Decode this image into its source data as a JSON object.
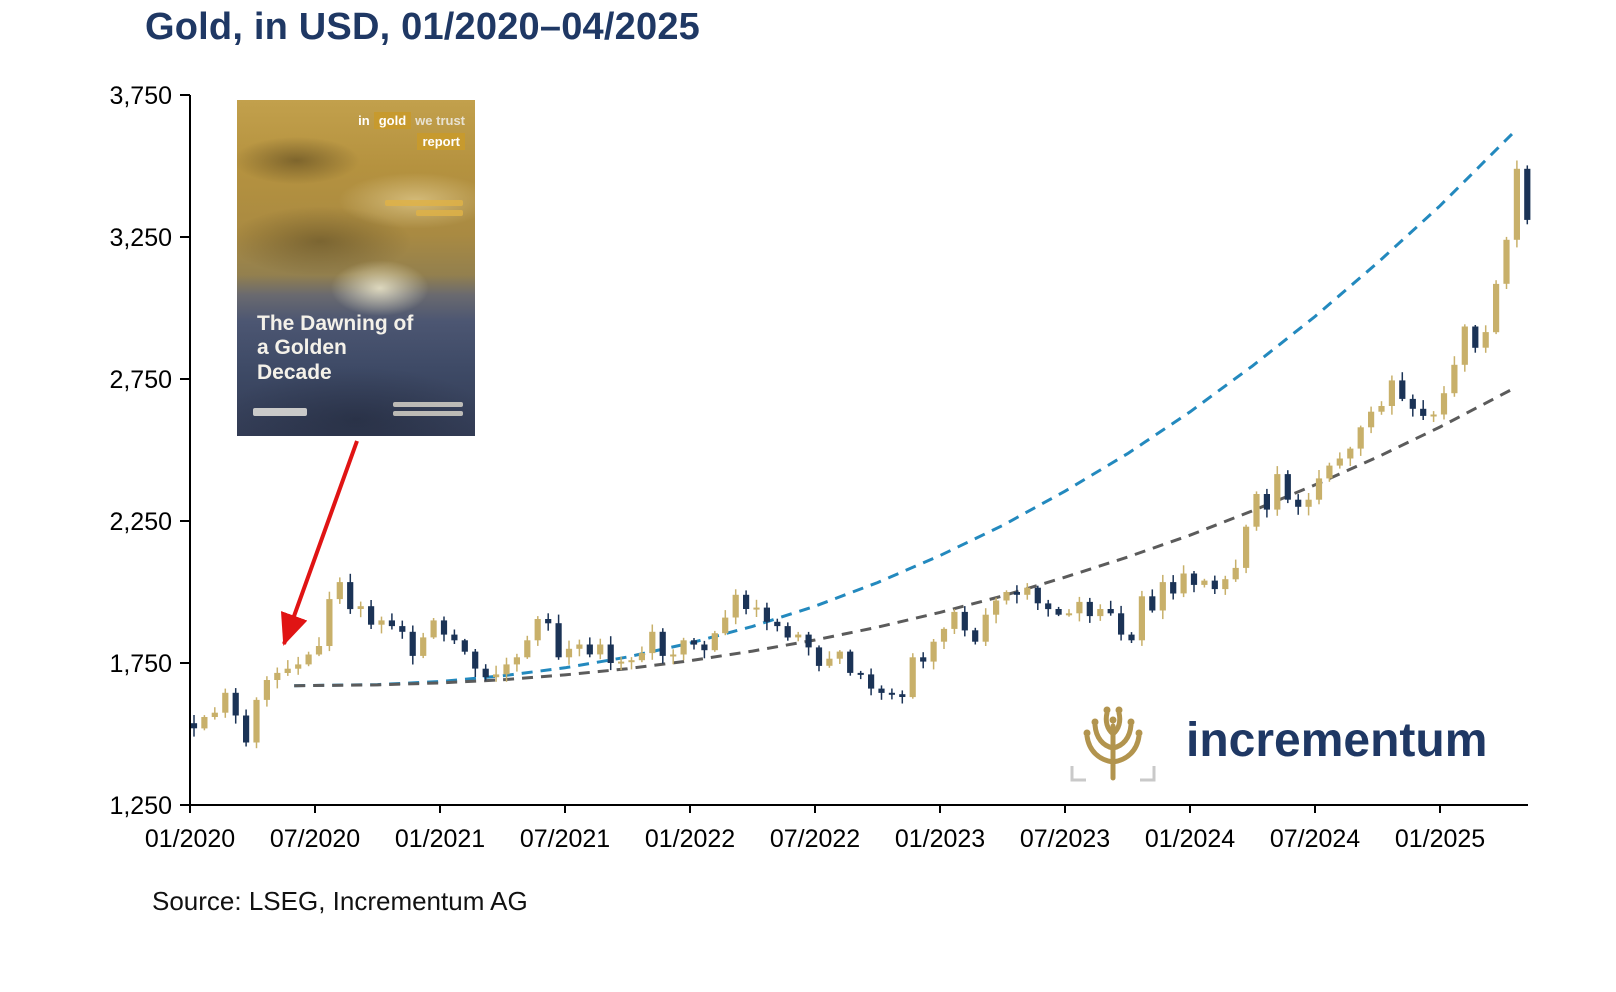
{
  "title": "Gold, in USD, 01/2020–04/2025",
  "source": "Source: LSEG, Incrementum AG",
  "logo": {
    "text": "incrementum"
  },
  "cover": {
    "masthead_in": "in",
    "masthead_gold": "gold",
    "masthead_we_trust": "we trust",
    "masthead_report": "report",
    "title": "The Dawning of a Golden Decade"
  },
  "chart_data": {
    "type": "candlestick",
    "title": "Gold, in USD, 01/2020–04/2025",
    "xlabel": "",
    "ylabel": "",
    "unit": "USD",
    "ylim": [
      1250,
      3750
    ],
    "yticks": [
      1250,
      1750,
      2250,
      2750,
      3250,
      3750
    ],
    "xticks": [
      "01/2020",
      "07/2020",
      "01/2021",
      "07/2021",
      "01/2022",
      "07/2022",
      "01/2023",
      "07/2023",
      "01/2024",
      "07/2024",
      "01/2025"
    ],
    "x_months_span": 64,
    "grid": false,
    "legend": "none",
    "colors": {
      "up": "#c8b06a",
      "down": "#1b3356"
    },
    "closes": [
      1520,
      1560,
      1575,
      1645,
      1565,
      1470,
      1620,
      1690,
      1715,
      1730,
      1745,
      1780,
      1810,
      1975,
      2035,
      1940,
      1950,
      1885,
      1900,
      1880,
      1860,
      1775,
      1840,
      1900,
      1850,
      1830,
      1790,
      1730,
      1700,
      1710,
      1745,
      1770,
      1830,
      1905,
      1890,
      1770,
      1800,
      1815,
      1780,
      1815,
      1750,
      1755,
      1760,
      1785,
      1860,
      1775,
      1780,
      1830,
      1815,
      1795,
      1855,
      1910,
      1990,
      1940,
      1945,
      1895,
      1880,
      1840,
      1850,
      1805,
      1740,
      1765,
      1790,
      1715,
      1710,
      1660,
      1645,
      1640,
      1630,
      1770,
      1755,
      1825,
      1870,
      1930,
      1865,
      1825,
      1920,
      1970,
      2000,
      1990,
      2015,
      1960,
      1940,
      1920,
      1925,
      1965,
      1915,
      1940,
      1925,
      1850,
      1830,
      1985,
      1935,
      2035,
      1995,
      2065,
      2025,
      2040,
      2010,
      2045,
      2085,
      2230,
      2345,
      2290,
      2415,
      2325,
      2300,
      2325,
      2400,
      2445,
      2470,
      2505,
      2580,
      2635,
      2655,
      2745,
      2680,
      2645,
      2620,
      2625,
      2700,
      2800,
      2935,
      2860,
      2915,
      3085,
      3240,
      3490,
      3310
    ],
    "projections": [
      {
        "name": "steep-trend-projection",
        "color": "#2389be",
        "style": "dashed",
        "months": [
          5,
          9,
          12,
          15,
          18,
          21,
          24,
          27,
          30,
          33,
          36,
          39,
          42,
          45,
          48,
          51,
          54,
          57,
          60,
          63.5
        ],
        "values": [
          1670,
          1674,
          1685,
          1705,
          1733,
          1771,
          1820,
          1879,
          1950,
          2033,
          2128,
          2234,
          2355,
          2487,
          2634,
          2796,
          2970,
          3159,
          3360,
          3616
        ]
      },
      {
        "name": "moderate-trend-projection",
        "color": "#5b5b5b",
        "style": "dashed",
        "months": [
          5,
          9,
          12,
          15,
          18,
          21,
          24,
          27,
          30,
          33,
          36,
          39,
          42,
          45,
          48,
          51,
          54,
          57,
          60,
          63.5
        ],
        "values": [
          1670,
          1673,
          1680,
          1691,
          1708,
          1730,
          1758,
          1792,
          1831,
          1876,
          1928,
          1986,
          2052,
          2123,
          2200,
          2286,
          2377,
          2475,
          2581,
          2715
        ]
      }
    ],
    "annotation": {
      "arrow_color": "#e01414"
    }
  }
}
